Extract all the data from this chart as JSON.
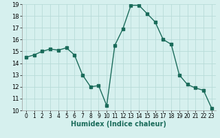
{
  "x": [
    0,
    1,
    2,
    3,
    4,
    5,
    6,
    7,
    8,
    9,
    10,
    11,
    12,
    13,
    14,
    15,
    16,
    17,
    18,
    19,
    20,
    21,
    22,
    23
  ],
  "y": [
    14.5,
    14.7,
    15.0,
    15.2,
    15.1,
    15.3,
    14.7,
    13.0,
    12.0,
    12.1,
    10.4,
    15.5,
    16.9,
    18.9,
    18.9,
    18.2,
    17.5,
    16.0,
    15.6,
    13.0,
    12.2,
    11.9,
    11.7,
    10.2
  ],
  "line_color": "#1a6b5a",
  "marker": "s",
  "markersize": 2.5,
  "linewidth": 1.0,
  "bg_color": "#d6f0ee",
  "grid_color": "#b8dbd8",
  "xlabel": "Humidex (Indice chaleur)",
  "xlabel_fontsize": 7,
  "tick_fontsize": 6,
  "ylim": [
    10,
    19
  ],
  "xlim": [
    -0.5,
    23.5
  ],
  "yticks": [
    10,
    11,
    12,
    13,
    14,
    15,
    16,
    17,
    18,
    19
  ],
  "xticks": [
    0,
    1,
    2,
    3,
    4,
    5,
    6,
    7,
    8,
    9,
    10,
    11,
    12,
    13,
    14,
    15,
    16,
    17,
    18,
    19,
    20,
    21,
    22,
    23
  ]
}
